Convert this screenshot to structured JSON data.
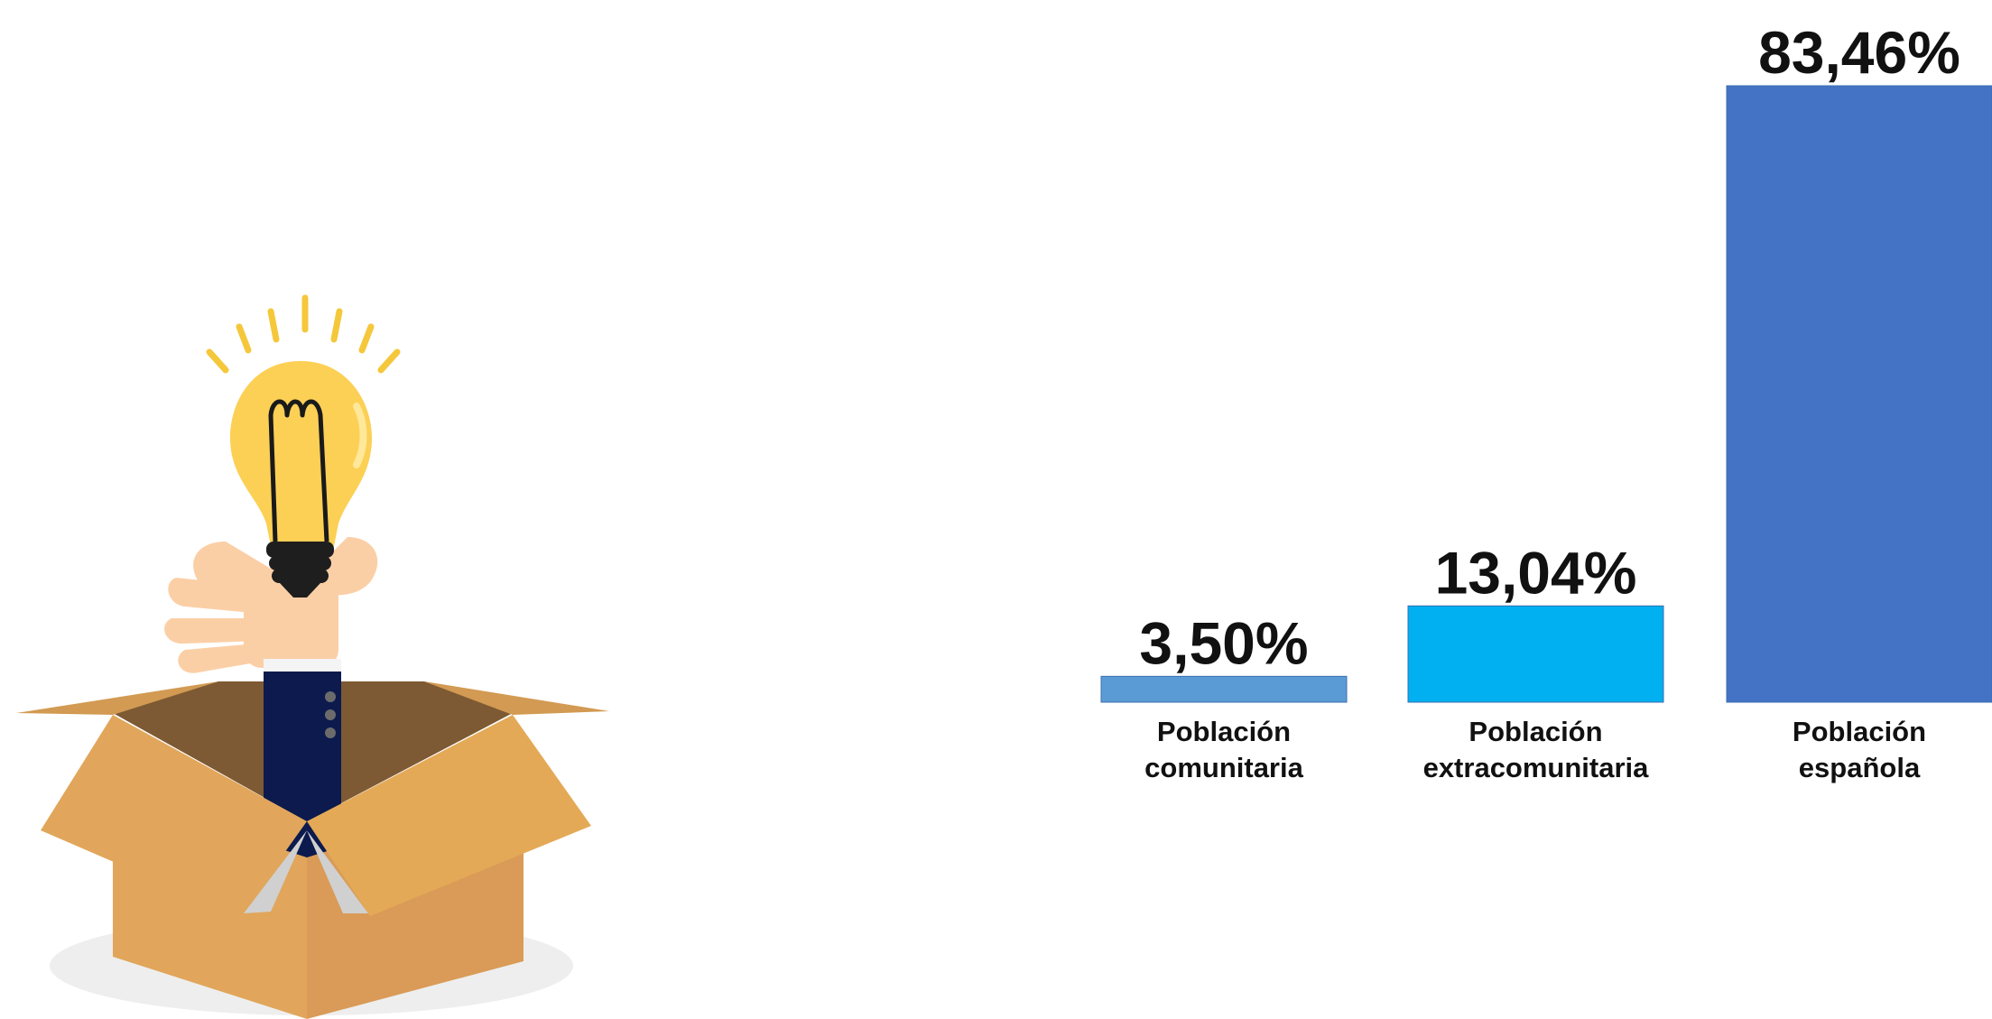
{
  "chart_data": {
    "type": "bar",
    "categories": [
      [
        "Población",
        "comunitaria"
      ],
      [
        "Población",
        "extracomunitaria"
      ],
      [
        "Población",
        "española"
      ]
    ],
    "values": [
      3.5,
      13.04,
      83.46
    ],
    "data_labels": [
      "3,50%",
      "13,04%",
      "83,46%"
    ],
    "colors": [
      "#5b9bd5",
      "#00b0f0",
      "#4472c4"
    ],
    "ylim": [
      0,
      83.46
    ],
    "grid": false,
    "legend": "none"
  },
  "illustration": {
    "subject": "lightbulb-idea-from-box",
    "colors": {
      "bulb": "#fcd055",
      "rays": "#f5c73b",
      "hand": "#fbcfa6",
      "sleeve": "#0c1a4e",
      "box": "#e1a65b",
      "box_dark": "#b87a3d",
      "shadow": "#eeeeee"
    }
  }
}
